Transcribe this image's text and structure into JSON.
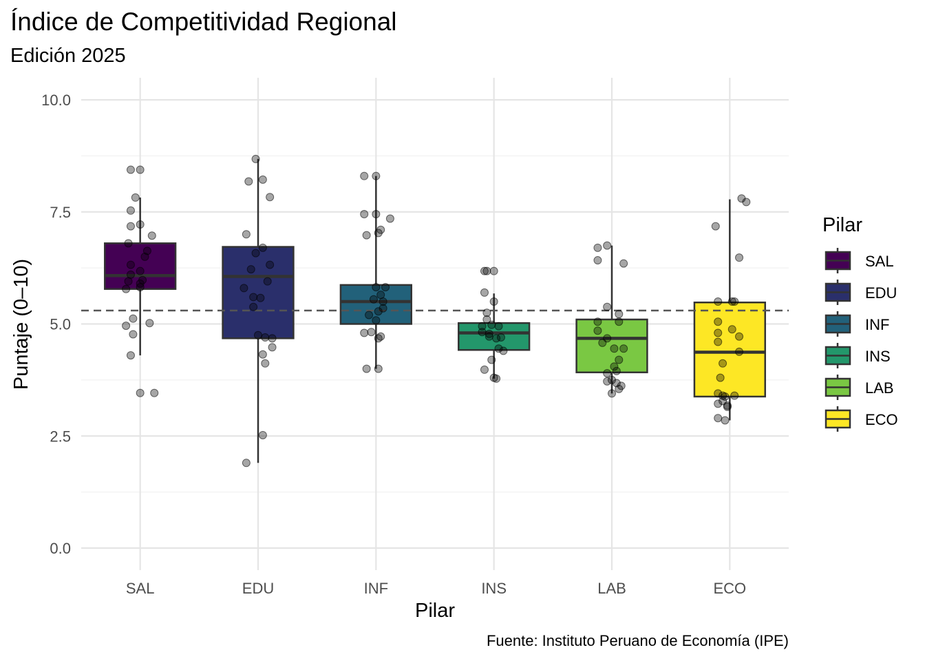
{
  "chart_data": {
    "type": "boxplot",
    "title": "Índice de Competitividad Regional",
    "subtitle": "Edición 2025",
    "caption": "Fuente: Instituto Peruano de Economía (IPE)",
    "xlabel": "Pilar",
    "ylabel": "Puntaje (0–10)",
    "ylim": [
      0,
      10
    ],
    "yticks": [
      "0.0",
      "2.5",
      "5.0",
      "7.5",
      "10.0"
    ],
    "ytick_values": [
      0,
      2.5,
      5,
      7.5,
      10
    ],
    "categories": [
      "SAL",
      "EDU",
      "INF",
      "INS",
      "LAB",
      "ECO"
    ],
    "reference_line": {
      "value": 5.3,
      "style": "dashed"
    },
    "grid": true,
    "legend": {
      "title": "Pilar",
      "position": "right"
    },
    "colors": [
      "#440154",
      "#2a2f6b",
      "#22617a",
      "#23976b",
      "#7ac843",
      "#fde725"
    ],
    "boxes": [
      {
        "name": "SAL",
        "min": 4.3,
        "q1": 5.78,
        "median": 6.08,
        "q3": 6.8,
        "max": 7.82
      },
      {
        "name": "EDU",
        "min": 1.9,
        "q1": 4.68,
        "median": 6.06,
        "q3": 6.72,
        "max": 8.68
      },
      {
        "name": "INF",
        "min": 4.0,
        "q1": 5.0,
        "median": 5.5,
        "q3": 5.87,
        "max": 8.3
      },
      {
        "name": "INS",
        "min": 3.78,
        "q1": 4.42,
        "median": 4.8,
        "q3": 5.02,
        "max": 5.68
      },
      {
        "name": "LAB",
        "min": 3.45,
        "q1": 3.92,
        "median": 4.68,
        "q3": 5.1,
        "max": 6.75
      },
      {
        "name": "ECO",
        "min": 2.85,
        "q1": 3.38,
        "median": 4.37,
        "q3": 5.48,
        "max": 7.78
      }
    ],
    "points": [
      [
        [
          -0.08,
          8.44
        ],
        [
          0,
          8.44
        ],
        [
          -0.04,
          7.82
        ],
        [
          -0.08,
          7.53
        ],
        [
          0,
          7.22
        ],
        [
          -0.08,
          7.18
        ],
        [
          0.1,
          6.97
        ],
        [
          -0.1,
          6.8
        ],
        [
          0.06,
          6.63
        ],
        [
          0.04,
          6.5
        ],
        [
          -0.08,
          6.32
        ],
        [
          0,
          6.18
        ],
        [
          -0.08,
          6.1
        ],
        [
          -0.1,
          5.95
        ],
        [
          0.02,
          5.98
        ],
        [
          0,
          5.9
        ],
        [
          -0.12,
          5.78
        ],
        [
          0,
          5.82
        ],
        [
          0.08,
          5.02
        ],
        [
          -0.12,
          4.96
        ],
        [
          -0.06,
          5.12
        ],
        [
          -0.06,
          4.77
        ],
        [
          -0.08,
          4.3
        ],
        [
          0,
          3.46
        ],
        [
          0.12,
          3.46
        ]
      ],
      [
        [
          -0.02,
          8.68
        ],
        [
          -0.08,
          8.18
        ],
        [
          0.04,
          8.22
        ],
        [
          0.1,
          7.83
        ],
        [
          -0.1,
          7.0
        ],
        [
          0.04,
          6.7
        ],
        [
          -0.02,
          6.58
        ],
        [
          -0.06,
          6.22
        ],
        [
          0.1,
          6.32
        ],
        [
          0.08,
          5.95
        ],
        [
          -0.12,
          5.8
        ],
        [
          0.02,
          5.58
        ],
        [
          -0.04,
          5.6
        ],
        [
          -0.04,
          5.38
        ],
        [
          0,
          4.75
        ],
        [
          0.06,
          4.7
        ],
        [
          0.12,
          4.68
        ],
        [
          0.12,
          4.48
        ],
        [
          0.04,
          4.32
        ],
        [
          0.06,
          4.12
        ],
        [
          0.04,
          2.52
        ],
        [
          -0.1,
          1.9
        ]
      ],
      [
        [
          -0.1,
          8.3
        ],
        [
          0,
          8.3
        ],
        [
          -0.1,
          7.45
        ],
        [
          0,
          7.45
        ],
        [
          0.04,
          7.1
        ],
        [
          0.12,
          7.35
        ],
        [
          -0.08,
          6.98
        ],
        [
          0.02,
          7.03
        ],
        [
          0,
          5.82
        ],
        [
          0.08,
          5.82
        ],
        [
          0.04,
          5.65
        ],
        [
          -0.02,
          5.55
        ],
        [
          0.06,
          5.35
        ],
        [
          -0.06,
          5.2
        ],
        [
          0.06,
          5.5
        ],
        [
          0.02,
          5.28
        ],
        [
          0,
          5.08
        ],
        [
          -0.1,
          4.8
        ],
        [
          -0.04,
          4.82
        ],
        [
          0.04,
          4.72
        ],
        [
          0.02,
          4.68
        ],
        [
          -0.08,
          4.0
        ],
        [
          0.02,
          4.0
        ]
      ],
      [
        [
          -0.08,
          6.18
        ],
        [
          0,
          6.18
        ],
        [
          -0.06,
          6.18
        ],
        [
          -0.08,
          5.7
        ],
        [
          0,
          5.5
        ],
        [
          -0.06,
          5.25
        ],
        [
          -0.06,
          5.1
        ],
        [
          -0.1,
          4.95
        ],
        [
          -0.02,
          4.98
        ],
        [
          0.04,
          4.95
        ],
        [
          -0.1,
          4.82
        ],
        [
          -0.04,
          4.78
        ],
        [
          0.02,
          4.68
        ],
        [
          0.06,
          4.7
        ],
        [
          -0.04,
          4.72
        ],
        [
          0.08,
          4.4
        ],
        [
          0.04,
          4.45
        ],
        [
          -0.02,
          4.2
        ],
        [
          -0.08,
          3.98
        ],
        [
          0,
          3.8
        ],
        [
          0.02,
          3.78
        ]
      ],
      [
        [
          -0.12,
          6.7
        ],
        [
          -0.04,
          6.75
        ],
        [
          0.1,
          6.35
        ],
        [
          -0.12,
          6.42
        ],
        [
          -0.04,
          5.38
        ],
        [
          0.06,
          5.22
        ],
        [
          -0.12,
          5.05
        ],
        [
          0.06,
          5.05
        ],
        [
          -0.12,
          4.85
        ],
        [
          -0.04,
          4.68
        ],
        [
          -0.08,
          4.58
        ],
        [
          0.02,
          4.45
        ],
        [
          0.1,
          4.45
        ],
        [
          0.06,
          4.2
        ],
        [
          0.02,
          4.05
        ],
        [
          0.04,
          3.95
        ],
        [
          -0.04,
          3.9
        ],
        [
          0,
          3.75
        ],
        [
          -0.04,
          3.72
        ],
        [
          0.04,
          3.68
        ],
        [
          0.08,
          3.62
        ],
        [
          0.06,
          3.55
        ],
        [
          0,
          3.45
        ]
      ],
      [
        [
          0.1,
          7.8
        ],
        [
          0.14,
          7.72
        ],
        [
          -0.12,
          7.18
        ],
        [
          0.08,
          6.48
        ],
        [
          -0.1,
          5.5
        ],
        [
          0.02,
          5.5
        ],
        [
          0.04,
          5.5
        ],
        [
          -0.1,
          5.05
        ],
        [
          0.02,
          4.88
        ],
        [
          -0.1,
          4.8
        ],
        [
          0.08,
          4.72
        ],
        [
          -0.1,
          4.6
        ],
        [
          0.08,
          4.38
        ],
        [
          -0.06,
          4.12
        ],
        [
          -0.08,
          3.8
        ],
        [
          -0.1,
          3.45
        ],
        [
          -0.06,
          3.4
        ],
        [
          0.04,
          3.4
        ],
        [
          -0.04,
          3.38
        ],
        [
          -0.06,
          3.28
        ],
        [
          -0.1,
          3.22
        ],
        [
          -0.02,
          3.18
        ],
        [
          -0.02,
          3.15
        ],
        [
          -0.1,
          2.9
        ],
        [
          -0.04,
          2.85
        ]
      ]
    ]
  }
}
